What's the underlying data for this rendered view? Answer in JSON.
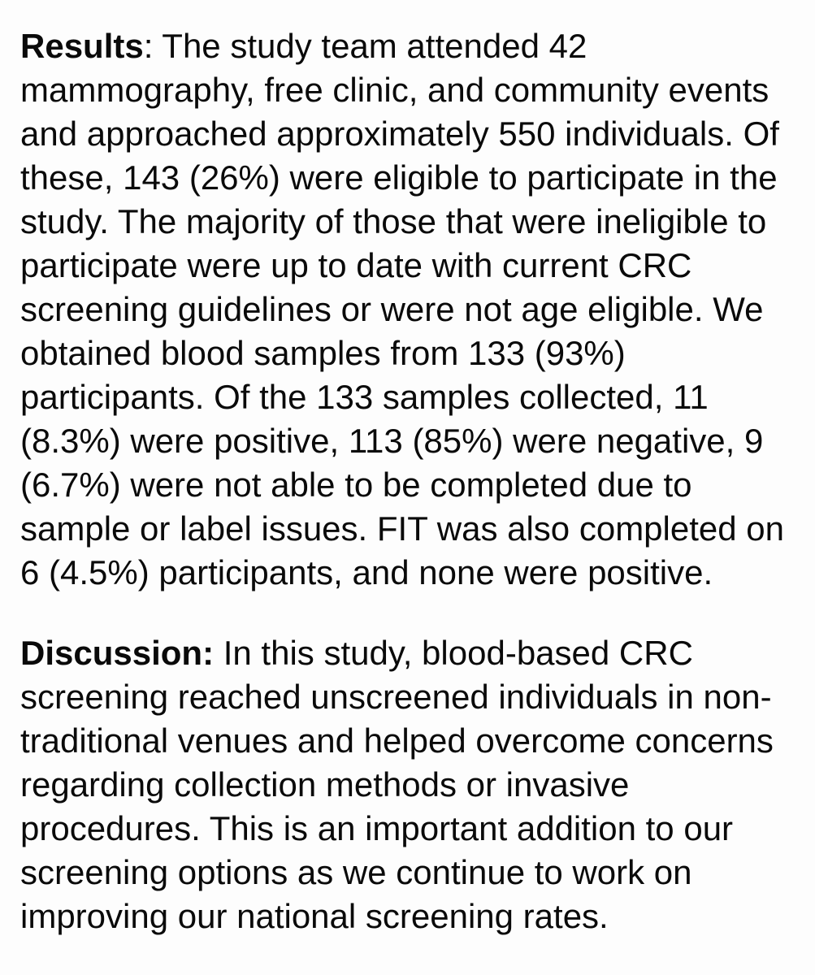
{
  "page": {
    "background_color": "#fdfdfd",
    "text_color": "#0a0a0a"
  },
  "sections": [
    {
      "heading": "Results",
      "lines": [
        ": The study team attended 42",
        "mammography, free clinic, and community events",
        "and approached approximately 550 individuals. Of",
        "these, 143 (26%) were eligible to participate in the",
        "study. The majority of those that were ineligible to",
        "participate were up to date with current CRC",
        "screening guidelines or were not age eligible. We",
        "obtained blood samples from 133 (93%)",
        "participants. Of the 133 samples collected, 11",
        "(8.3%) were positive, 113 (85%) were negative, 9",
        "(6.7%) were not able to be completed due to",
        "sample or label issues. FIT was also completed on",
        "6 (4.5%) participants, and none were positive."
      ]
    },
    {
      "heading": "Discussion:",
      "lines": [
        " In this study, blood-based CRC",
        "screening reached unscreened individuals in non-",
        "traditional venues and helped overcome concerns",
        "regarding collection methods or invasive",
        "procedures. This is an important addition to our",
        "screening options as we continue to work on",
        "improving our national screening rates."
      ]
    }
  ]
}
